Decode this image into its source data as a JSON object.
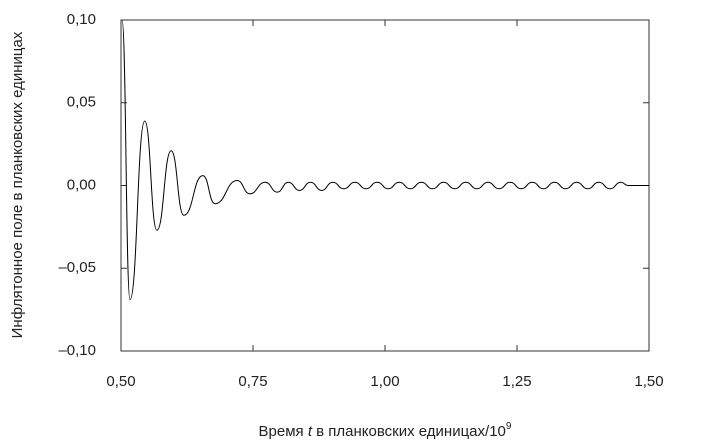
{
  "chart_data": {
    "type": "line",
    "ylabel": "Инфлятонное поле в планковских единицах",
    "xlabel": {
      "before": "Время ",
      "var": "t",
      "after": " в планковских единицах/10",
      "sup": "9"
    },
    "color": "#000000",
    "xlim": [
      0.5,
      1.5
    ],
    "ylim": [
      -0.1,
      0.1
    ],
    "xticks": [
      {
        "value": 0.5,
        "label": "0,50"
      },
      {
        "value": 0.75,
        "label": "0,75"
      },
      {
        "value": 1.0,
        "label": "1,00"
      },
      {
        "value": 1.25,
        "label": "1,25"
      },
      {
        "value": 1.5,
        "label": "1,50"
      }
    ],
    "yticks": [
      {
        "value": -0.1,
        "label": "–0,10"
      },
      {
        "value": -0.05,
        "label": "–0,05"
      },
      {
        "value": 0,
        "label": "0,00"
      },
      {
        "value": 0.05,
        "label": "0,05"
      },
      {
        "value": 0.1,
        "label": "0,10"
      }
    ],
    "x": [
      0.502,
      0.517,
      0.545,
      0.568,
      0.595,
      0.619,
      0.655,
      0.678,
      0.72,
      0.744,
      0.773,
      0.796,
      0.817,
      0.838,
      0.859,
      0.88,
      0.901,
      0.922,
      0.943,
      0.964,
      0.985,
      1.006,
      1.027,
      1.048,
      1.069,
      1.09,
      1.111,
      1.132,
      1.153,
      1.174,
      1.195,
      1.216,
      1.237,
      1.258,
      1.279,
      1.3,
      1.321,
      1.342,
      1.363,
      1.384,
      1.405,
      1.426,
      1.447,
      1.46,
      1.5
    ],
    "values": [
      0.1,
      -0.069,
      0.039,
      -0.027,
      0.021,
      -0.018,
      0.006,
      -0.011,
      0.003,
      -0.005,
      0.002,
      -0.004,
      0.002,
      -0.003,
      0.002,
      -0.003,
      0.002,
      -0.002,
      0.002,
      -0.002,
      0.002,
      -0.002,
      0.002,
      -0.002,
      0.002,
      -0.002,
      0.002,
      -0.002,
      0.002,
      -0.002,
      0.002,
      -0.002,
      0.002,
      -0.002,
      0.002,
      -0.002,
      0.002,
      -0.002,
      0.002,
      -0.002,
      0.002,
      -0.002,
      0.002,
      0,
      0
    ]
  }
}
